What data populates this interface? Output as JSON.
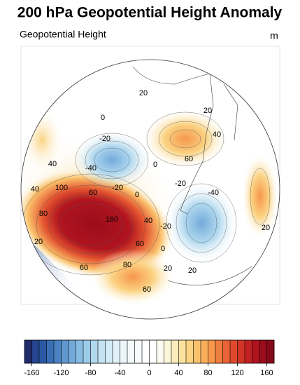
{
  "title": "200 hPa Geopotential Height Anomaly",
  "subtitle": "Geopotential Height",
  "unit": "m",
  "contour_labels": [
    20,
    0,
    -20,
    20,
    40,
    -40,
    40,
    60,
    0,
    -20,
    100,
    60,
    -20,
    0,
    40,
    -40,
    80,
    160,
    -20,
    40,
    20,
    60,
    20,
    60,
    80,
    0,
    20,
    20,
    60
  ],
  "colorbar": {
    "lim": [
      -170,
      170
    ],
    "ticks": [
      -160,
      -120,
      -80,
      -40,
      0,
      40,
      80,
      120,
      160
    ],
    "levels": [
      -160,
      -150,
      -140,
      -130,
      -120,
      -110,
      -100,
      -90,
      -80,
      -70,
      -60,
      -50,
      -40,
      -30,
      -20,
      -10,
      0,
      10,
      20,
      30,
      40,
      50,
      60,
      70,
      80,
      90,
      100,
      110,
      120,
      130,
      140,
      150,
      160
    ],
    "colors": [
      "#1f2a6b",
      "#25458e",
      "#2b5aa4",
      "#3a6fb5",
      "#4b83c2",
      "#5f97cf",
      "#74aad9",
      "#88bbe2",
      "#9ccbe9",
      "#b0d8ef",
      "#c3e3f3",
      "#d3ebf6",
      "#e1f1f8",
      "#ebf5fa",
      "#f3f9fc",
      "#f8fbfd",
      "#ffffff",
      "#ffffff",
      "#fdfbef",
      "#fcf5d8",
      "#fcecbc",
      "#fbe19e",
      "#fbd383",
      "#fbc26c",
      "#f9ae5a",
      "#f6974c",
      "#f17d40",
      "#ea6336",
      "#df4a2e",
      "#d23427",
      "#c22123",
      "#b0141f",
      "#9b0d1c",
      "#850a1a"
    ]
  }
}
